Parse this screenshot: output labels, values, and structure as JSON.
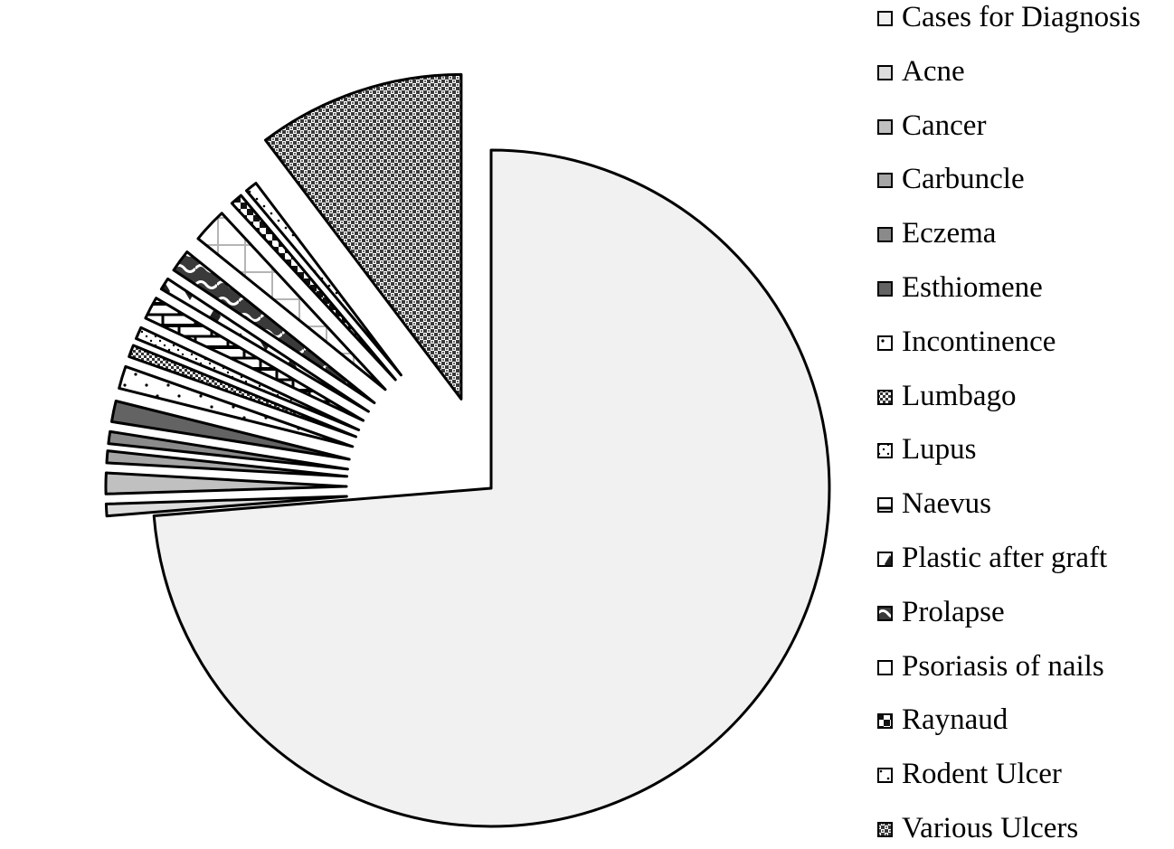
{
  "chart_data": {
    "type": "pie",
    "title": "",
    "legend_position": "right",
    "slices": [
      {
        "label": "Cases for Diagnosis",
        "value": 73.7,
        "fill": "#f1f1f1",
        "pattern": "solid"
      },
      {
        "label": "Acne",
        "value": 0.8,
        "fill": "#dddddd",
        "pattern": "solid"
      },
      {
        "label": "Cancer",
        "value": 1.4,
        "fill": "#c0c0c0",
        "pattern": "solid"
      },
      {
        "label": "Carbuncle",
        "value": 0.8,
        "fill": "#a6a6a6",
        "pattern": "solid"
      },
      {
        "label": "Eczema",
        "value": 0.8,
        "fill": "#8a8a8a",
        "pattern": "solid"
      },
      {
        "label": "Esthiomene",
        "value": 1.4,
        "fill": "#636363",
        "pattern": "solid"
      },
      {
        "label": "Incontinence",
        "value": 1.5,
        "fill": "#ffffff",
        "pattern": "dots"
      },
      {
        "label": "Lumbago",
        "value": 0.8,
        "fill": "#ffffff",
        "pattern": "checker"
      },
      {
        "label": "Lupus",
        "value": 0.8,
        "fill": "#ffffff",
        "pattern": "diag-dots"
      },
      {
        "label": "Naevus",
        "value": 1.5,
        "fill": "#ffffff",
        "pattern": "brick"
      },
      {
        "label": "Plastic after graft",
        "value": 0.8,
        "fill": "#ffffff",
        "pattern": "diamonds"
      },
      {
        "label": "Prolapse",
        "value": 1.5,
        "fill": "#3a3a3a",
        "pattern": "wave"
      },
      {
        "label": "Psoriasis of nails",
        "value": 2.3,
        "fill": "#ffffff",
        "pattern": "grid"
      },
      {
        "label": "Raynaud",
        "value": 0.8,
        "fill": "#ffffff",
        "pattern": "check-large"
      },
      {
        "label": "Rodent Ulcer",
        "value": 0.8,
        "fill": "#ffffff",
        "pattern": "sparse-dots"
      },
      {
        "label": "Various Ulcers",
        "value": 10.3,
        "fill": "#555555",
        "pattern": "dense-checker"
      }
    ]
  }
}
